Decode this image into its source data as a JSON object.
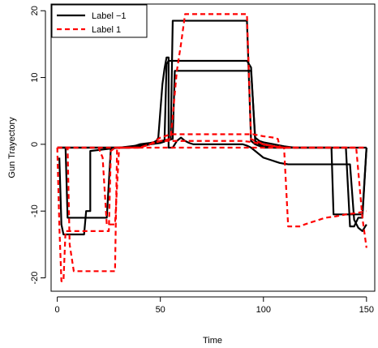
{
  "chart_data": {
    "type": "line",
    "title": "",
    "xlabel": "Time",
    "ylabel": "Gun Trayectory",
    "xlim": [
      -3,
      154
    ],
    "ylim": [
      -22,
      21
    ],
    "xticks": [
      "0",
      "50",
      "100",
      "150"
    ],
    "yticks": [
      "-20",
      "-10",
      "0",
      "10",
      "20"
    ],
    "grid": false,
    "legend_position": "top-left",
    "legend": [
      {
        "label": "Label −1",
        "color": "#000000",
        "style": "solid"
      },
      {
        "label": "Label 1",
        "color": "#ff0000",
        "style": "dashed"
      }
    ],
    "series": [
      {
        "group": "Label −1",
        "color": "#000000",
        "dashed": false,
        "x": [
          1,
          2,
          3,
          13,
          14,
          16,
          16,
          44,
          46,
          48,
          49,
          50,
          51,
          52,
          53,
          54,
          54,
          56,
          58,
          60,
          62,
          64,
          66,
          68,
          70,
          72,
          74,
          76,
          78,
          80,
          82,
          84,
          86,
          88,
          90,
          90,
          92,
          94,
          96,
          98,
          100,
          102,
          104,
          106,
          108,
          110,
          112,
          114,
          116,
          118,
          120,
          122,
          124,
          126,
          128,
          130,
          132,
          134,
          136,
          138,
          140,
          142,
          144,
          146,
          148,
          150
        ],
        "y": [
          -2,
          -12,
          -13.5,
          -13.5,
          -10,
          -10,
          -1,
          0,
          0.2,
          0.5,
          1,
          5,
          9,
          11.3,
          13,
          13,
          -0.5,
          -0.5,
          0.5,
          1,
          0.5,
          0.2,
          0,
          0,
          0,
          0,
          0,
          0,
          0,
          0,
          0,
          0,
          0,
          0,
          0,
          0,
          -0.2,
          -0.5,
          -1,
          -1.5,
          -2,
          -2.2,
          -2.4,
          -2.6,
          -2.8,
          -2.9,
          -3,
          -3,
          -3,
          -3,
          -3,
          -3,
          -3,
          -3,
          -3,
          -3,
          -3,
          -3,
          -3,
          -3,
          -3,
          -3,
          -11.3,
          -12.5,
          -13,
          -12
        ]
      },
      {
        "group": "Label −1",
        "color": "#000000",
        "dashed": false,
        "x": [
          0,
          2,
          4,
          5,
          6,
          8,
          10,
          12,
          14,
          16,
          18,
          20,
          22,
          24,
          26,
          28,
          30,
          35,
          40,
          45,
          50,
          55,
          56,
          58,
          60,
          62,
          64,
          66,
          68,
          70,
          72,
          74,
          76,
          78,
          80,
          82,
          84,
          86,
          88,
          90,
          92,
          94,
          96,
          100,
          105,
          110,
          115,
          120,
          125,
          130,
          135,
          140,
          142,
          144,
          146,
          148,
          150
        ],
        "y": [
          -0.5,
          -0.5,
          -0.5,
          -11,
          -11,
          -11,
          -11,
          -11,
          -11,
          -11,
          -11,
          -11,
          -11,
          -11,
          -0.5,
          -0.5,
          -0.5,
          -0.5,
          0,
          0.2,
          0.5,
          0.7,
          18.5,
          18.5,
          18.5,
          18.5,
          18.5,
          18.5,
          18.5,
          18.5,
          18.5,
          18.5,
          18.5,
          18.5,
          18.5,
          18.5,
          18.5,
          18.5,
          18.5,
          18.5,
          18.5,
          0.5,
          0,
          -0.5,
          -0.5,
          -0.5,
          -0.5,
          -0.5,
          -0.5,
          -0.5,
          -0.5,
          -0.5,
          -12.3,
          -12.3,
          -11,
          -11,
          -0.5
        ]
      },
      {
        "group": "Label −1",
        "color": "#000000",
        "dashed": false,
        "x": [
          0,
          5,
          10,
          15,
          20,
          25,
          30,
          35,
          40,
          45,
          48,
          50,
          52,
          54,
          56,
          57,
          58,
          60,
          62,
          64,
          66,
          68,
          70,
          72,
          74,
          76,
          78,
          80,
          82,
          84,
          86,
          88,
          90,
          92,
          94,
          96,
          98,
          100,
          105,
          110,
          115,
          120,
          125,
          130,
          135,
          140,
          145,
          150
        ],
        "y": [
          -0.5,
          -0.5,
          -0.5,
          -0.5,
          -0.5,
          -0.5,
          -0.5,
          -0.5,
          -0.3,
          0,
          0.2,
          0.3,
          0.5,
          0.7,
          0.8,
          11,
          11,
          11,
          11,
          11,
          11,
          11,
          11,
          11,
          11,
          11,
          11,
          11,
          11,
          11,
          11,
          11,
          11,
          11,
          11,
          1,
          0.5,
          0.3,
          0,
          -0.3,
          -0.5,
          -0.5,
          -0.5,
          -0.5,
          -0.5,
          -0.5,
          -0.5,
          -0.5
        ]
      },
      {
        "group": "Label −1",
        "color": "#000000",
        "dashed": false,
        "x": [
          0,
          5,
          10,
          15,
          20,
          25,
          30,
          35,
          40,
          45,
          50,
          52,
          53,
          54,
          56,
          58,
          60,
          62,
          64,
          66,
          68,
          70,
          72,
          74,
          76,
          78,
          80,
          82,
          84,
          86,
          88,
          90,
          92,
          94,
          96,
          98,
          100,
          105,
          110,
          115,
          120,
          125,
          130,
          133,
          134,
          136,
          138,
          140,
          142,
          144,
          146,
          148,
          150
        ],
        "y": [
          -0.5,
          -0.5,
          -0.5,
          -0.5,
          -0.5,
          -0.5,
          -0.5,
          -0.5,
          -0.3,
          0,
          0.2,
          0.4,
          12,
          12.5,
          12.5,
          12.5,
          12.5,
          12.5,
          12.5,
          12.5,
          12.5,
          12.5,
          12.5,
          12.5,
          12.5,
          12.5,
          12.5,
          12.5,
          12.5,
          12.5,
          12.5,
          12.5,
          12.5,
          11.5,
          0.5,
          0,
          -0.3,
          -0.5,
          -0.5,
          -0.5,
          -0.5,
          -0.5,
          -0.5,
          -0.5,
          -10.5,
          -10.5,
          -10.5,
          -10.5,
          -10.5,
          -10.5,
          -10.5,
          -10.5,
          -0.5
        ]
      },
      {
        "group": "Label 1",
        "color": "#ff0000",
        "dashed": true,
        "x": [
          0,
          1,
          2,
          3,
          4,
          6,
          8,
          10,
          12,
          14,
          16,
          18,
          20,
          22,
          24,
          25,
          26,
          28,
          30,
          35,
          40,
          45,
          50,
          55,
          60,
          65,
          70,
          75,
          80,
          85,
          90,
          95,
          100,
          105,
          110,
          115,
          120,
          125,
          130,
          135,
          140,
          145,
          150
        ],
        "y": [
          -0.5,
          -12.3,
          -20.5,
          -20.5,
          -13,
          -13,
          -13,
          -13,
          -13,
          -13,
          -13,
          -13,
          -13,
          -13,
          -13,
          -13,
          -1,
          -0.5,
          -0.5,
          -0.5,
          -0.5,
          0,
          0.5,
          0.5,
          0.5,
          0.5,
          0.5,
          0.5,
          0.5,
          0.5,
          0.5,
          0.3,
          0,
          -0.3,
          -0.5,
          -0.5,
          -0.5,
          -0.5,
          -0.5,
          -0.5,
          -0.5,
          -0.5,
          -0.5
        ]
      },
      {
        "group": "Label 1",
        "color": "#ff0000",
        "dashed": true,
        "x": [
          0,
          5,
          6,
          8,
          10,
          12,
          14,
          16,
          18,
          20,
          22,
          24,
          26,
          28,
          29,
          30,
          35,
          40,
          45,
          50,
          55,
          58,
          60,
          62,
          64,
          66,
          68,
          70,
          72,
          74,
          76,
          78,
          80,
          82,
          84,
          86,
          88,
          90,
          92,
          94,
          96,
          98,
          100,
          105,
          110,
          112,
          114,
          116,
          118,
          120,
          125,
          130,
          135,
          140,
          145,
          150
        ],
        "y": [
          -0.5,
          -0.5,
          -15,
          -19,
          -19,
          -19,
          -19,
          -19,
          -19,
          -19,
          -19,
          -19,
          -19,
          -19,
          -0.5,
          -0.5,
          -0.5,
          -0.5,
          0,
          0.5,
          0.8,
          11,
          15,
          19.5,
          19.5,
          19.5,
          19.5,
          19.5,
          19.5,
          19.5,
          19.5,
          19.5,
          19.5,
          19.5,
          19.5,
          19.5,
          19.5,
          19.5,
          19.5,
          0.8,
          0.5,
          0.3,
          0,
          -0.3,
          -0.5,
          -12.3,
          -12.3,
          -12.3,
          -12.3,
          -12,
          -11.5,
          -11,
          -10.8,
          -10.5,
          -10.3,
          -10
        ]
      },
      {
        "group": "Label 1",
        "color": "#ff0000",
        "dashed": true,
        "x": [
          0,
          5,
          10,
          15,
          20,
          25,
          30,
          35,
          40,
          45,
          50,
          55,
          60,
          65,
          70,
          75,
          80,
          85,
          90,
          95,
          100,
          105,
          110,
          115,
          120,
          125,
          130,
          135,
          140,
          145,
          148,
          150
        ],
        "y": [
          -0.5,
          -0.5,
          -0.5,
          -0.5,
          -0.5,
          -0.5,
          -0.5,
          -0.5,
          -0.5,
          -0.5,
          -0.5,
          -0.5,
          -0.5,
          -0.5,
          -0.5,
          -0.5,
          -0.5,
          -0.5,
          -0.5,
          -0.5,
          -0.5,
          -0.5,
          -0.5,
          -0.5,
          -0.5,
          -0.5,
          -0.5,
          -0.5,
          -0.5,
          -0.5,
          -11,
          -15.5
        ]
      },
      {
        "group": "Label 1",
        "color": "#ff0000",
        "dashed": true,
        "x": [
          0,
          5,
          10,
          15,
          20,
          22,
          24,
          26,
          28,
          30,
          35,
          40,
          45,
          50,
          55,
          60,
          65,
          70,
          75,
          80,
          85,
          90,
          95,
          100,
          105,
          107,
          108,
          110,
          112,
          114,
          116,
          118,
          120,
          125,
          130,
          135,
          140,
          145,
          150
        ],
        "y": [
          -0.5,
          -0.5,
          -0.5,
          -0.5,
          -0.5,
          -2,
          -12,
          -12,
          -12,
          -0.5,
          -0.5,
          -0.5,
          0,
          1,
          1.5,
          1.5,
          1.5,
          1.5,
          1.5,
          1.5,
          1.5,
          1.5,
          1.5,
          1.2,
          1,
          0.8,
          -0.5,
          -0.5,
          -0.5,
          -0.5,
          -0.5,
          -0.5,
          -0.5,
          -0.5,
          -0.5,
          -0.5,
          -0.5,
          -0.5,
          -0.5
        ]
      }
    ]
  }
}
